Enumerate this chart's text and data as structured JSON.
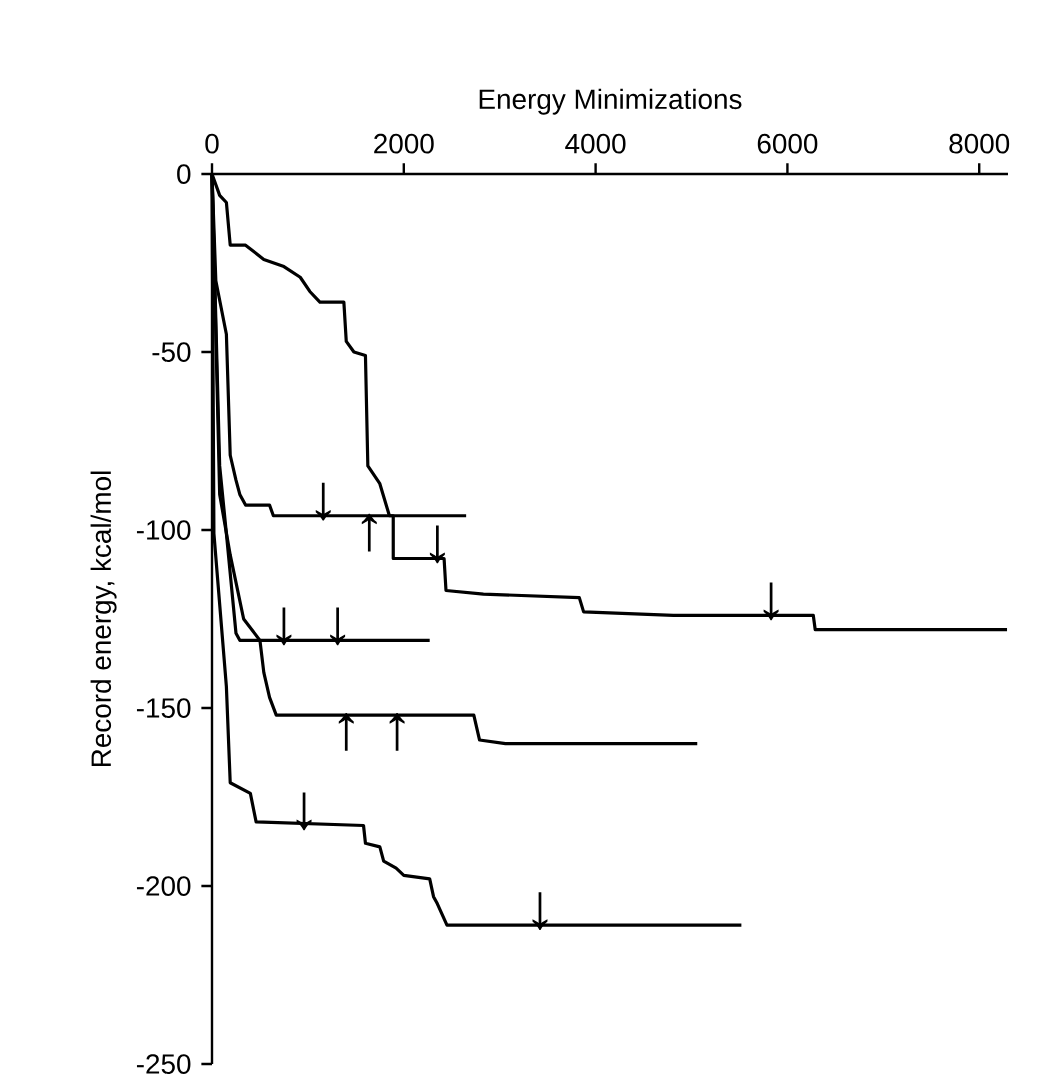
{
  "chart_data": {
    "type": "line",
    "xlabel": "Energy Minimizations",
    "ylabel": "Record energy, kcal/mol",
    "xlim": [
      0,
      8300
    ],
    "ylim": [
      -250,
      0
    ],
    "xticks": [
      0,
      2000,
      4000,
      6000,
      8000
    ],
    "yticks": [
      0,
      -50,
      -100,
      -150,
      -200,
      -250
    ],
    "marker": "none",
    "line_style": "solid",
    "series": [
      {
        "color": "#000000",
        "x": [
          0,
          80,
          150,
          190,
          350,
          540,
          750,
          920,
          1020,
          1125,
          1375,
          1400,
          1480,
          1600,
          1625,
          1750,
          1850,
          1890,
          1890,
          2420,
          2440,
          2830,
          3830,
          3875,
          4810,
          4830,
          6270,
          6290,
          8290
        ],
        "values": [
          0,
          -6,
          -8,
          -20,
          -20,
          -24,
          -26,
          -29,
          -33,
          -36,
          -36,
          -47,
          -50,
          -51,
          -82,
          -87,
          -96,
          -96,
          -108,
          -108,
          -117,
          -118,
          -119,
          -123,
          -124,
          -124,
          -124,
          -128,
          -128
        ]
      },
      {
        "color": "#000000",
        "x": [
          0,
          40,
          150,
          190,
          250,
          290,
          350,
          600,
          640,
          2650
        ],
        "values": [
          0,
          -30,
          -45,
          -79,
          -86,
          -90,
          -93,
          -93,
          -96,
          -96
        ]
      },
      {
        "color": "#000000",
        "x": [
          0,
          80,
          150,
          250,
          290,
          2270
        ],
        "values": [
          0,
          -82,
          -101,
          -129,
          -131,
          -131
        ]
      },
      {
        "color": "#000000",
        "x": [
          0,
          80,
          190,
          330,
          500,
          540,
          600,
          670,
          2730,
          2790,
          3060,
          5060
        ],
        "values": [
          0,
          -90,
          -107,
          -125,
          -131,
          -140,
          -147,
          -152,
          -152,
          -159,
          -160,
          -160
        ]
      },
      {
        "color": "#000000",
        "x": [
          0,
          20,
          150,
          190,
          400,
          460,
          1580,
          1600,
          1750,
          1790,
          1920,
          2000,
          2270,
          2310,
          2350,
          2450,
          5520
        ],
        "values": [
          0,
          -101,
          -144,
          -171,
          -174,
          -182,
          -183,
          -188,
          -189,
          -193,
          -195,
          -197,
          -198,
          -203,
          -205,
          -211,
          -211
        ]
      }
    ],
    "annotations": [
      {
        "text": "↓",
        "x": 1160,
        "y": -96
      },
      {
        "text": "↑",
        "x": 1640,
        "y": -96
      },
      {
        "text": "↓",
        "x": 2350,
        "y": -108
      },
      {
        "text": "↓",
        "x": 750,
        "y": -131
      },
      {
        "text": "↓",
        "x": 1310,
        "y": -131
      },
      {
        "text": "↑",
        "x": 1400,
        "y": -152
      },
      {
        "text": "↑",
        "x": 1930,
        "y": -152
      },
      {
        "text": "↓",
        "x": 960,
        "y": -183
      },
      {
        "text": "↓",
        "x": 5830,
        "y": -124
      },
      {
        "text": "↓",
        "x": 3420,
        "y": -211
      }
    ]
  }
}
